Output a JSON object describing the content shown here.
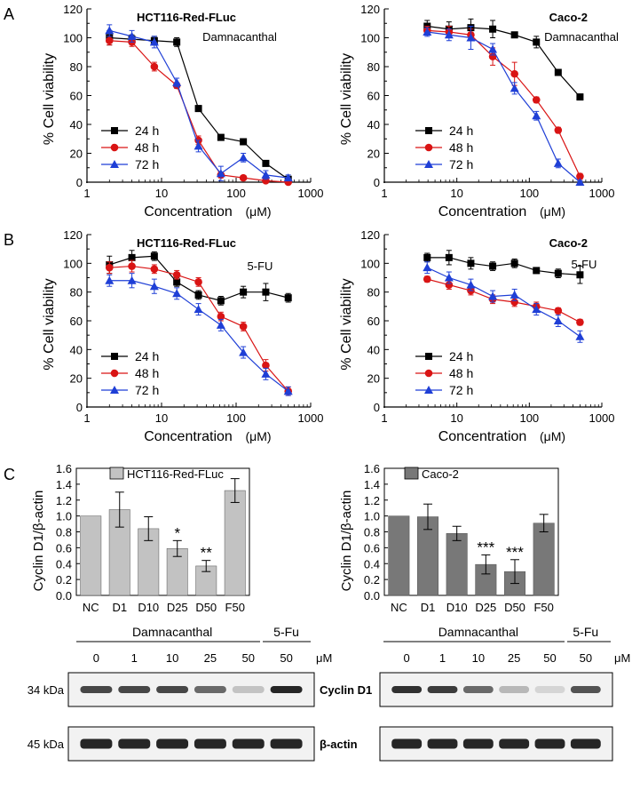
{
  "figure": {
    "panel_labels": [
      "A",
      "B",
      "C"
    ],
    "colors": {
      "h24": "#000000",
      "h48": "#d91414",
      "h72": "#1f3fd6",
      "hct_bar": "#c2c2c2",
      "caco_bar": "#787878",
      "axis": "#000000"
    }
  },
  "chart_data": [
    {
      "id": "A-left",
      "type": "line",
      "xscale": "log",
      "title": "HCT116-Red-FLuc",
      "subtitle": "Damnacanthal",
      "xlabel": "Concentration",
      "xunit": "(μM)",
      "ylabel": "% Cell viability",
      "xlim": [
        1,
        1000
      ],
      "ylim": [
        0,
        120
      ],
      "xticks": [
        "1",
        "10",
        "100",
        "1000"
      ],
      "yticks": [
        "0",
        "20",
        "40",
        "60",
        "80",
        "100",
        "120"
      ],
      "legend": "bottom-left",
      "series": [
        {
          "name": "24 h",
          "marker": "square",
          "color": "#000000",
          "x": [
            2,
            4,
            8,
            16,
            31.25,
            62.5,
            125,
            250,
            500
          ],
          "y": [
            100,
            99,
            98,
            97,
            51,
            31,
            28,
            13,
            2
          ],
          "err": [
            5,
            3,
            3,
            3,
            2,
            2,
            2,
            2,
            1
          ]
        },
        {
          "name": "48 h",
          "marker": "circle",
          "color": "#d91414",
          "x": [
            2,
            4,
            8,
            16,
            31.25,
            62.5,
            125,
            250,
            500
          ],
          "y": [
            98,
            97,
            80,
            67,
            29,
            5,
            3,
            1,
            0
          ],
          "err": [
            3,
            3,
            3,
            2,
            3,
            2,
            1,
            1,
            1
          ]
        },
        {
          "name": "72 h",
          "marker": "triangle",
          "color": "#1f3fd6",
          "x": [
            2,
            4,
            8,
            16,
            31.25,
            62.5,
            125,
            250,
            500
          ],
          "y": [
            105,
            101,
            97,
            69,
            25,
            6,
            17,
            5,
            3
          ],
          "err": [
            4,
            4,
            4,
            3,
            4,
            5,
            3,
            3,
            2
          ]
        }
      ]
    },
    {
      "id": "A-right",
      "type": "line",
      "xscale": "log",
      "title": "Caco-2",
      "subtitle": "Damnacanthal",
      "xlabel": "Concentration",
      "xunit": "(μM)",
      "ylabel": "% Cell viability",
      "xlim": [
        1,
        1000
      ],
      "ylim": [
        0,
        120
      ],
      "xticks": [
        "1",
        "10",
        "100",
        "1000"
      ],
      "yticks": [
        "0",
        "20",
        "40",
        "60",
        "80",
        "100",
        "120"
      ],
      "legend": "bottom-left",
      "series": [
        {
          "name": "24 h",
          "marker": "square",
          "color": "#000000",
          "x": [
            3.9,
            7.8,
            15.6,
            31.25,
            62.5,
            125,
            250,
            500
          ],
          "y": [
            108,
            106,
            107,
            106,
            102,
            97,
            76,
            59
          ],
          "err": [
            4,
            5,
            6,
            6,
            2,
            4,
            2,
            2
          ]
        },
        {
          "name": "48 h",
          "marker": "circle",
          "color": "#d91414",
          "x": [
            3.9,
            7.8,
            15.6,
            31.25,
            62.5,
            125,
            250,
            500
          ],
          "y": [
            105,
            104,
            102,
            87,
            75,
            57,
            36,
            4
          ],
          "err": [
            3,
            4,
            4,
            6,
            8,
            2,
            2,
            2
          ]
        },
        {
          "name": "72 h",
          "marker": "triangle",
          "color": "#1f3fd6",
          "x": [
            3.9,
            7.8,
            15.6,
            31.25,
            62.5,
            125,
            250,
            500
          ],
          "y": [
            104,
            102,
            100,
            92,
            65,
            46,
            13,
            0
          ],
          "err": [
            3,
            4,
            8,
            4,
            4,
            3,
            3,
            1
          ]
        }
      ]
    },
    {
      "id": "B-left",
      "type": "line",
      "xscale": "log",
      "title": "HCT116-Red-FLuc",
      "subtitle": "5-FU",
      "xlabel": "Concentration",
      "xunit": "(μM)",
      "ylabel": "% Cell viability",
      "xlim": [
        1,
        1000
      ],
      "ylim": [
        0,
        120
      ],
      "xticks": [
        "1",
        "10",
        "100",
        "1000"
      ],
      "yticks": [
        "0",
        "20",
        "40",
        "60",
        "80",
        "100",
        "120"
      ],
      "legend": "bottom-left",
      "series": [
        {
          "name": "24 h",
          "marker": "square",
          "color": "#000000",
          "x": [
            2,
            4,
            8,
            16,
            31.25,
            62.5,
            125,
            250,
            500
          ],
          "y": [
            99,
            104,
            105,
            87,
            78,
            74,
            80,
            80,
            76
          ],
          "err": [
            6,
            5,
            3,
            3,
            3,
            3,
            4,
            6,
            3
          ]
        },
        {
          "name": "48 h",
          "marker": "circle",
          "color": "#d91414",
          "x": [
            2,
            4,
            8,
            16,
            31.25,
            62.5,
            125,
            250,
            500
          ],
          "y": [
            97,
            98,
            96,
            92,
            87,
            63,
            56,
            29,
            11
          ],
          "err": [
            4,
            4,
            3,
            3,
            3,
            3,
            3,
            4,
            3
          ]
        },
        {
          "name": "72 h",
          "marker": "triangle",
          "color": "#1f3fd6",
          "x": [
            2,
            4,
            8,
            16,
            31.25,
            62.5,
            125,
            250,
            500
          ],
          "y": [
            88,
            88,
            84,
            79,
            68,
            57,
            38,
            23,
            11
          ],
          "err": [
            4,
            5,
            5,
            4,
            4,
            4,
            4,
            4,
            3
          ]
        }
      ]
    },
    {
      "id": "B-right",
      "type": "line",
      "xscale": "log",
      "title": "Caco-2",
      "subtitle": "5-FU",
      "xlabel": "Concentration",
      "xunit": "(μM)",
      "ylabel": "% Cell viability",
      "xlim": [
        1,
        1000
      ],
      "ylim": [
        0,
        120
      ],
      "xticks": [
        "1",
        "10",
        "100",
        "1000"
      ],
      "yticks": [
        "0",
        "20",
        "40",
        "60",
        "80",
        "100",
        "120"
      ],
      "legend": "bottom-left",
      "series": [
        {
          "name": "24 h",
          "marker": "square",
          "color": "#000000",
          "x": [
            3.9,
            7.8,
            15.6,
            31.25,
            62.5,
            125,
            250,
            500
          ],
          "y": [
            104,
            104,
            100,
            98,
            100,
            95,
            93,
            92
          ],
          "err": [
            3,
            5,
            4,
            3,
            3,
            2,
            3,
            6
          ]
        },
        {
          "name": "48 h",
          "marker": "circle",
          "color": "#d91414",
          "x": [
            3.9,
            7.8,
            15.6,
            31.25,
            62.5,
            125,
            250,
            500
          ],
          "y": [
            89,
            85,
            81,
            75,
            73,
            70,
            67,
            59
          ],
          "err": [
            2,
            3,
            3,
            3,
            3,
            3,
            2,
            2
          ]
        },
        {
          "name": "72 h",
          "marker": "triangle",
          "color": "#1f3fd6",
          "x": [
            3.9,
            7.8,
            15.6,
            31.25,
            62.5,
            125,
            250,
            500
          ],
          "y": [
            97,
            90,
            85,
            77,
            78,
            68,
            60,
            49
          ],
          "err": [
            4,
            4,
            4,
            4,
            4,
            4,
            4,
            4
          ]
        }
      ]
    },
    {
      "id": "C-left",
      "type": "bar",
      "legend_label": "HCT116-Red-FLuc",
      "ylabel": "Cyclin D1/β-actin",
      "ylim": [
        0,
        1.6
      ],
      "yticks": [
        "0.0",
        "0.2",
        "0.4",
        "0.6",
        "0.8",
        "1.0",
        "1.2",
        "1.4",
        "1.6"
      ],
      "categories": [
        "NC",
        "D1",
        "D10",
        "D25",
        "D50",
        "F50"
      ],
      "values": [
        1.0,
        1.08,
        0.84,
        0.59,
        0.37,
        1.32
      ],
      "errors": [
        0,
        0.22,
        0.15,
        0.1,
        0.07,
        0.15
      ],
      "significance": [
        "",
        "",
        "",
        "*",
        "**",
        ""
      ]
    },
    {
      "id": "C-right",
      "type": "bar",
      "legend_label": "Caco-2",
      "ylabel": "Cyclin D1/β-actin",
      "ylim": [
        0,
        1.6
      ],
      "yticks": [
        "0.0",
        "0.2",
        "0.4",
        "0.6",
        "0.8",
        "1.0",
        "1.2",
        "1.4",
        "1.6"
      ],
      "categories": [
        "NC",
        "D1",
        "D10",
        "D25",
        "D50",
        "F50"
      ],
      "values": [
        1.0,
        0.99,
        0.78,
        0.39,
        0.3,
        0.91
      ],
      "errors": [
        0,
        0.16,
        0.09,
        0.12,
        0.15,
        0.11
      ],
      "significance": [
        "",
        "",
        "",
        "***",
        "***",
        ""
      ]
    }
  ],
  "blots": [
    {
      "id": "blot-left",
      "group_labels": [
        "Damnacanthal",
        "5-Fu"
      ],
      "doses": [
        "0",
        "1",
        "10",
        "25",
        "50",
        "50"
      ],
      "unit": "μM",
      "rows": [
        {
          "mw": "34 kDa",
          "protein": "Cyclin D1",
          "intensity": [
            0.75,
            0.75,
            0.75,
            0.6,
            0.2,
            0.9
          ]
        },
        {
          "mw": "45 kDa",
          "protein": "β-actin",
          "intensity": [
            0.9,
            0.9,
            0.9,
            0.9,
            0.9,
            0.9
          ]
        }
      ]
    },
    {
      "id": "blot-right",
      "group_labels": [
        "Damnacanthal",
        "5-Fu"
      ],
      "doses": [
        "0",
        "1",
        "10",
        "25",
        "50",
        "50"
      ],
      "unit": "μM",
      "rows": [
        {
          "mw": "",
          "protein": "Cyclin D1",
          "intensity": [
            0.85,
            0.8,
            0.6,
            0.25,
            0.12,
            0.7
          ]
        },
        {
          "mw": "",
          "protein": "β-actin",
          "intensity": [
            0.9,
            0.9,
            0.9,
            0.9,
            0.9,
            0.9
          ]
        }
      ]
    }
  ]
}
